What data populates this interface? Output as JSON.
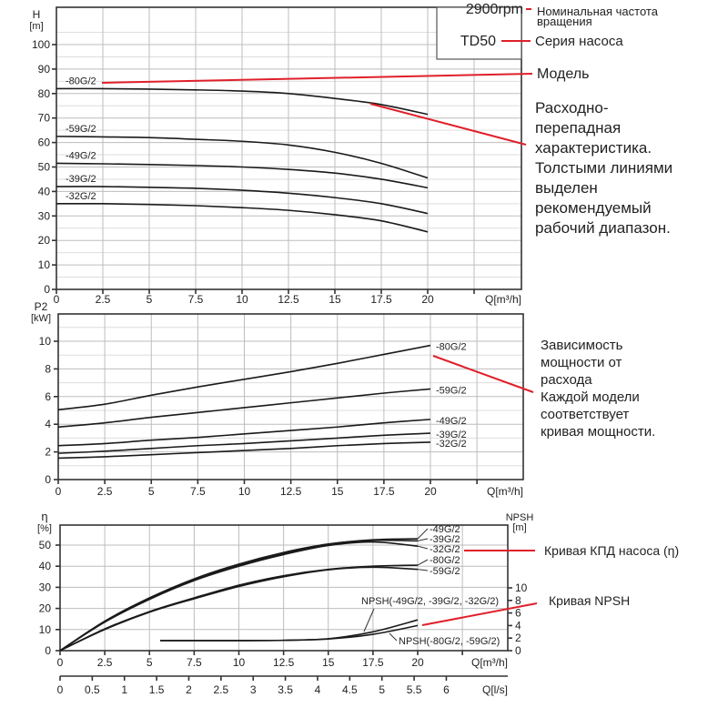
{
  "header": {
    "rpm": "2900rpm",
    "rpm_note": "Номинальная частота вращения",
    "rpm_note_line1": "Номинальная частота",
    "rpm_note_line2": "вращения",
    "series": "TD50",
    "series_note": "Серия насоса",
    "model_note": "Модель"
  },
  "annotations": {
    "hq": [
      "Расходно-",
      "перепадная",
      "характеристика.",
      "Толстыми линиями",
      "выделен",
      "рекомендуемый",
      "рабочий диапазон."
    ],
    "power": [
      "Зависимость",
      "мощности от",
      "расхода",
      "Каждой модели",
      "соответствует",
      "кривая мощности."
    ],
    "eff": "Кривая КПД насоса (η)",
    "npsh": "Кривая NPSH"
  },
  "colors": {
    "curve": "#1a1a1a",
    "annotation": "#e0202a",
    "grid": "#bdbdbd"
  },
  "chart_data": [
    {
      "type": "line",
      "title": "H-Q",
      "xlabel": "Q[m³/h]",
      "ylabel": "H [m]",
      "ylabel_line1": "H",
      "ylabel_line2": "[m]",
      "xlim": [
        0,
        25
      ],
      "ylim": [
        0,
        105
      ],
      "xticks": [
        "0",
        "2.5",
        "5",
        "7.5",
        "10",
        "12.5",
        "15",
        "17.5",
        "20"
      ],
      "yticks": [
        "0",
        "10",
        "20",
        "30",
        "40",
        "50",
        "60",
        "70",
        "80",
        "90",
        "100"
      ],
      "grid": true,
      "x": [
        0,
        2.5,
        5,
        7.5,
        10,
        12.5,
        15,
        17.5,
        20
      ],
      "series": [
        {
          "name": "-80G/2",
          "values": [
            82,
            82,
            81.8,
            81.5,
            81,
            80,
            78,
            75.5,
            71.5
          ]
        },
        {
          "name": "-59G/2",
          "values": [
            62.5,
            62.3,
            62,
            61.3,
            60.5,
            59,
            56,
            51.5,
            45.5
          ]
        },
        {
          "name": "-49G/2",
          "values": [
            51.5,
            51.3,
            51,
            50.6,
            50,
            49,
            47.5,
            45,
            41.5
          ]
        },
        {
          "name": "-39G/2",
          "values": [
            42,
            42,
            41.7,
            41.3,
            40.5,
            39.3,
            37.5,
            35,
            31
          ]
        },
        {
          "name": "-32G/2",
          "values": [
            35,
            35,
            34.7,
            34.2,
            33.4,
            32.3,
            30.5,
            28,
            23.5
          ]
        }
      ]
    },
    {
      "type": "line",
      "title": "P2-Q",
      "xlabel": "Q[m³/h]",
      "ylabel": "P2 [kW]",
      "ylabel_line1": "P2",
      "ylabel_line2": "[kW]",
      "xlim": [
        0,
        25
      ],
      "ylim": [
        0,
        11
      ],
      "xticks": [
        "0",
        "2.5",
        "5",
        "7.5",
        "10",
        "12.5",
        "15",
        "17.5",
        "20"
      ],
      "yticks": [
        "0",
        "2",
        "4",
        "6",
        "8",
        "10"
      ],
      "grid": true,
      "x": [
        0,
        2.5,
        5,
        7.5,
        10,
        12.5,
        15,
        17.5,
        20
      ],
      "series": [
        {
          "name": "-80G/2",
          "values": [
            5.05,
            5.45,
            6.1,
            6.7,
            7.25,
            7.8,
            8.4,
            9.05,
            9.7
          ]
        },
        {
          "name": "-59G/2",
          "values": [
            3.8,
            4.1,
            4.5,
            4.85,
            5.2,
            5.55,
            5.9,
            6.25,
            6.55
          ]
        },
        {
          "name": "-49G/2",
          "values": [
            2.45,
            2.6,
            2.85,
            3.05,
            3.3,
            3.55,
            3.8,
            4.1,
            4.35
          ]
        },
        {
          "name": "-39G/2",
          "values": [
            1.9,
            2.05,
            2.25,
            2.45,
            2.6,
            2.8,
            3.0,
            3.2,
            3.35
          ]
        },
        {
          "name": "-32G/2",
          "values": [
            1.55,
            1.65,
            1.8,
            1.95,
            2.1,
            2.25,
            2.45,
            2.6,
            2.7
          ]
        }
      ]
    },
    {
      "type": "line",
      "title": "η-Q / NPSH-Q",
      "xlabel": "Q[m³/h]",
      "xlabel2": "Q[l/s]",
      "ylabel": "η [%]",
      "ylabel_line1": "η",
      "ylabel_line2": "[%]",
      "ylabel_right": "NPSH [m]",
      "ylabel_right_line1": "NPSH",
      "ylabel_right_line2": "[m]",
      "xlim": [
        0,
        25
      ],
      "ylim": [
        0,
        60
      ],
      "xticks": [
        "0",
        "2.5",
        "5",
        "7.5",
        "10",
        "12.5",
        "15",
        "17.5",
        "20"
      ],
      "xticks2": [
        "0",
        "0.5",
        "1",
        "1.5",
        "2",
        "2.5",
        "3",
        "3.5",
        "4",
        "4.5",
        "5",
        "5.5",
        "6"
      ],
      "yticks": [
        "0",
        "10",
        "20",
        "30",
        "40",
        "50"
      ],
      "yticks_right": [
        "0",
        "2",
        "4",
        "6",
        "8",
        "10"
      ],
      "grid": true,
      "x": [
        0,
        2.5,
        5,
        7.5,
        10,
        12.5,
        15,
        17.5,
        20
      ],
      "series": [
        {
          "name": "-49G/2",
          "values": [
            0,
            14,
            25,
            34,
            41,
            46.5,
            50.5,
            52.5,
            53
          ]
        },
        {
          "name": "-39G/2",
          "values": [
            0,
            13.8,
            24.7,
            33.6,
            40.5,
            46,
            50.2,
            52.2,
            52
          ]
        },
        {
          "name": "-32G/2",
          "values": [
            0,
            13.5,
            24.3,
            33.2,
            40,
            45.5,
            49.8,
            51.5,
            49.5
          ]
        },
        {
          "name": "-80G/2",
          "values": [
            0,
            10.3,
            18.5,
            25,
            31,
            35.5,
            38.5,
            40,
            40.5
          ]
        },
        {
          "name": "-59G/2",
          "values": [
            0,
            10,
            18.2,
            24.6,
            30.4,
            35,
            38.3,
            39.5,
            38.5
          ]
        }
      ],
      "npsh_x": [
        5.6,
        7.5,
        10,
        12.5,
        15,
        17.5,
        20
      ],
      "npsh_series": [
        {
          "name": "NPSH(-49G/2, -39G/2, -32G/2)",
          "values": [
            1.6,
            1.6,
            1.6,
            1.65,
            1.9,
            3.0,
            4.9
          ]
        },
        {
          "name": "NPSH(-80G/2, -59G/2)",
          "values": [
            1.6,
            1.6,
            1.6,
            1.65,
            1.85,
            2.6,
            4.0
          ]
        }
      ],
      "npsh_ylim": [
        0,
        14
      ]
    }
  ]
}
